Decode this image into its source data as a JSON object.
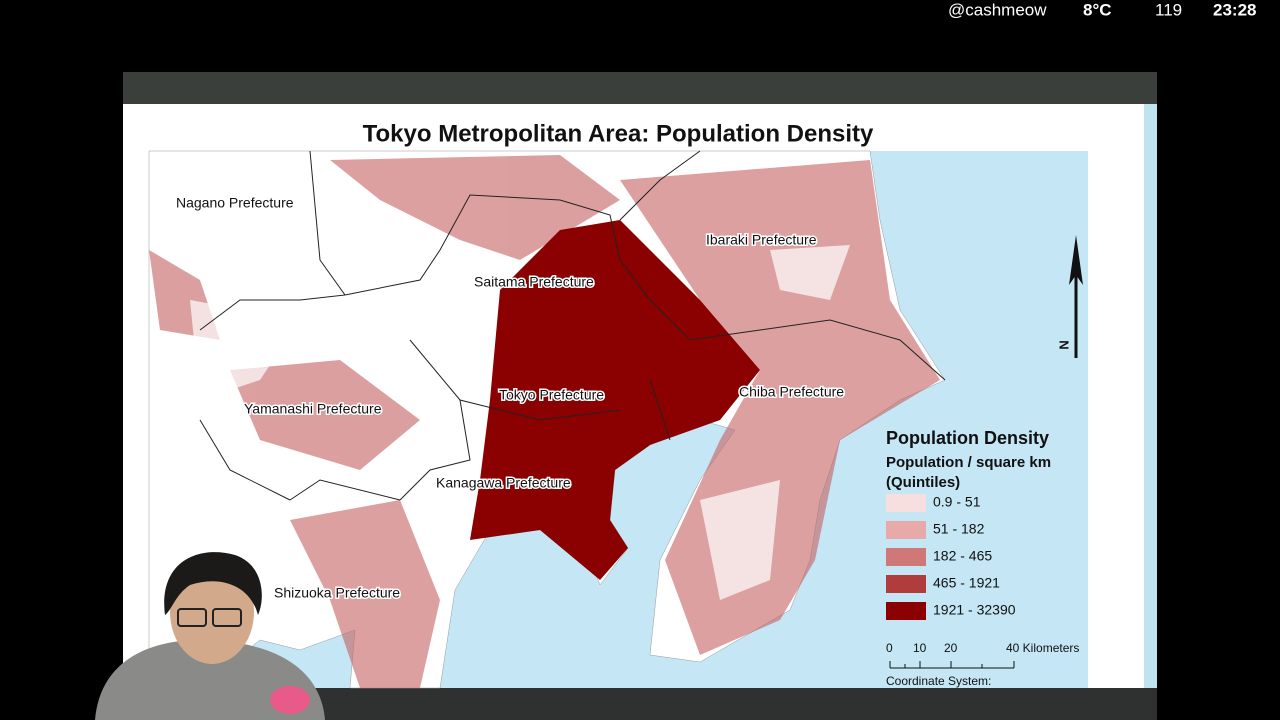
{
  "overlay": {
    "handle": "@cashmeow",
    "temperature": "8°C",
    "count": "119",
    "time": "23:28"
  },
  "slide": {
    "title": "Tokyo Metropolitan Area: Population Density",
    "map": {
      "labels": [
        "Nagano Prefecture",
        "Ibaraki Prefecture",
        "Saitama Prefecture",
        "Tokyo Prefecture",
        "Chiba Prefecture",
        "Yamanashi Prefecture",
        "Kanagawa Prefecture",
        "Shizuoka Prefecture"
      ],
      "north": "N"
    },
    "legend": {
      "title": "Population Density",
      "subtitle": [
        "Population / square km",
        "(Quintiles)"
      ],
      "items": [
        {
          "label": "0.9 - 51",
          "color": "#f7dfe0"
        },
        {
          "label": "51 - 182",
          "color": "#e8a9a9"
        },
        {
          "label": "182 - 465",
          "color": "#d07878"
        },
        {
          "label": "465 - 1921",
          "color": "#b03c3c"
        },
        {
          "label": "1921 - 32390",
          "color": "#8b0000"
        }
      ]
    },
    "scale_bar": {
      "labels": [
        "0",
        "10",
        "20",
        "40 Kilometers"
      ]
    },
    "coordinate_system": "Coordinate System:"
  }
}
